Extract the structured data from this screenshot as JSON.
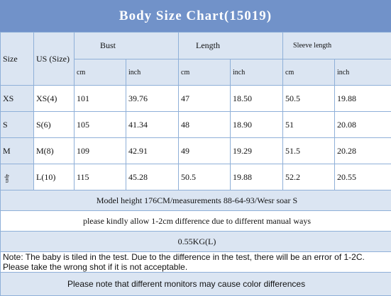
{
  "title": "Body Size Chart(15019)",
  "header": {
    "size": "Size",
    "us_size": "US (Size)",
    "groups": [
      "Bust",
      "Length",
      "Sleeve length"
    ],
    "units": [
      "cm",
      "inch",
      "cm",
      "inch",
      "cm",
      "inch"
    ]
  },
  "table": {
    "rows": [
      [
        "XS",
        "XS(4)",
        "101",
        "39.76",
        "47",
        "18.50",
        "50.5",
        "19.88"
      ],
      [
        "S",
        "S(6)",
        "105",
        "41.34",
        "48",
        "18.90",
        "51",
        "20.08"
      ],
      [
        "M",
        "M(8)",
        "109",
        "42.91",
        "49",
        "19.29",
        "51.5",
        "20.28"
      ],
      [
        "4pm",
        "L(10)",
        "115",
        "45.28",
        "50.5",
        "19.88",
        "52.2",
        "20.55"
      ]
    ]
  },
  "notes": [
    "Model height 176CM/measurements 88-64-93/Wesr soar S",
    "please kindly allow 1-2cm difference due to different manual ways",
    "0.55KG(L)",
    "Note: The baby is tiled in the test. Due to the difference in the test, there will be an error of 1-2C. Please take the wrong shot if it is not acceptable.",
    "Please note that different monitors may cause color differences"
  ]
}
